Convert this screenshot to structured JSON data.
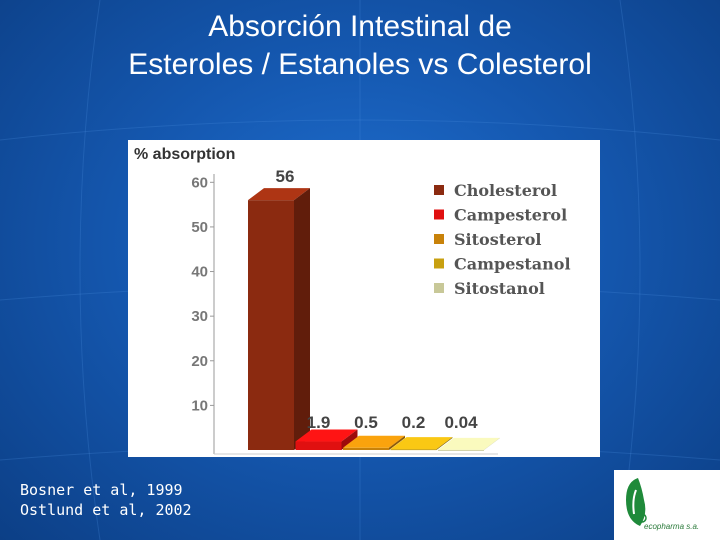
{
  "slide": {
    "title_line1": "Absorción Intestinal de",
    "title_line2": "Esteroles / Estanoles vs Colesterol",
    "references": [
      "Bosner et al, 1999",
      "Ostlund et al, 2002"
    ],
    "logo_text": "ecopharma s.a."
  },
  "chart_data": {
    "type": "bar",
    "title": "",
    "ylabel": "% absorption",
    "xlabel": "",
    "ylim": [
      0,
      65
    ],
    "yticks": [
      10,
      20,
      30,
      40,
      50,
      60
    ],
    "categories": [
      "Cholesterol",
      "Campesterol",
      "Sitosterol",
      "Campestanol",
      "Sitostanol"
    ],
    "values": [
      56,
      1.9,
      0.5,
      0.2,
      0.04
    ],
    "data_labels": [
      "56",
      "1.9",
      "0.5",
      "0.2",
      "0.04"
    ],
    "colors": [
      "#8b2a10",
      "#e01010",
      "#c8820a",
      "#c8a010",
      "#c8c898"
    ],
    "legend_position": "top-right",
    "grid": false,
    "style": "3d"
  }
}
